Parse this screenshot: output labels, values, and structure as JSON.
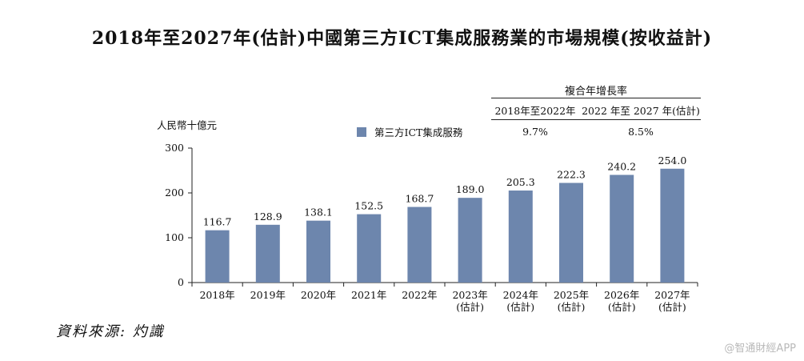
{
  "title": "2018年至2027年(估計)中國第三方ICT集成服務業的市場規模(按收益計)",
  "source": "資料來源: 灼識",
  "watermark": "@智通財經APP",
  "cagr_table": {
    "header": "複合年增長率",
    "columns": [
      {
        "label": "2018年至2022年",
        "value": "9.7%"
      },
      {
        "label": "2022 年至 2027 年(估計)",
        "value": "8.5%"
      }
    ]
  },
  "chart_data": {
    "type": "bar",
    "ylabel": "人民幣十億元",
    "ylim": [
      0,
      300
    ],
    "yticks": [
      0,
      100,
      200,
      300
    ],
    "categories": [
      [
        "2018年"
      ],
      [
        "2019年"
      ],
      [
        "2020年"
      ],
      [
        "2021年"
      ],
      [
        "2022年"
      ],
      [
        "2023年",
        "(估計)"
      ],
      [
        "2024年",
        "(估計)"
      ],
      [
        "2025年",
        "(估計)"
      ],
      [
        "2026年",
        "(估計)"
      ],
      [
        "2027年",
        "(估計)"
      ]
    ],
    "series": [
      {
        "name": "第三方ICT集成服務",
        "color": "#6d86ad",
        "values": [
          116.7,
          128.9,
          138.1,
          152.5,
          168.7,
          189.0,
          205.3,
          222.3,
          240.2,
          254.0
        ],
        "labels": [
          "116.7",
          "128.9",
          "138.1",
          "152.5",
          "168.7",
          "189.0",
          "205.3",
          "222.3",
          "240.2",
          "254.0"
        ]
      }
    ],
    "grid": false,
    "legend_position": "top"
  }
}
